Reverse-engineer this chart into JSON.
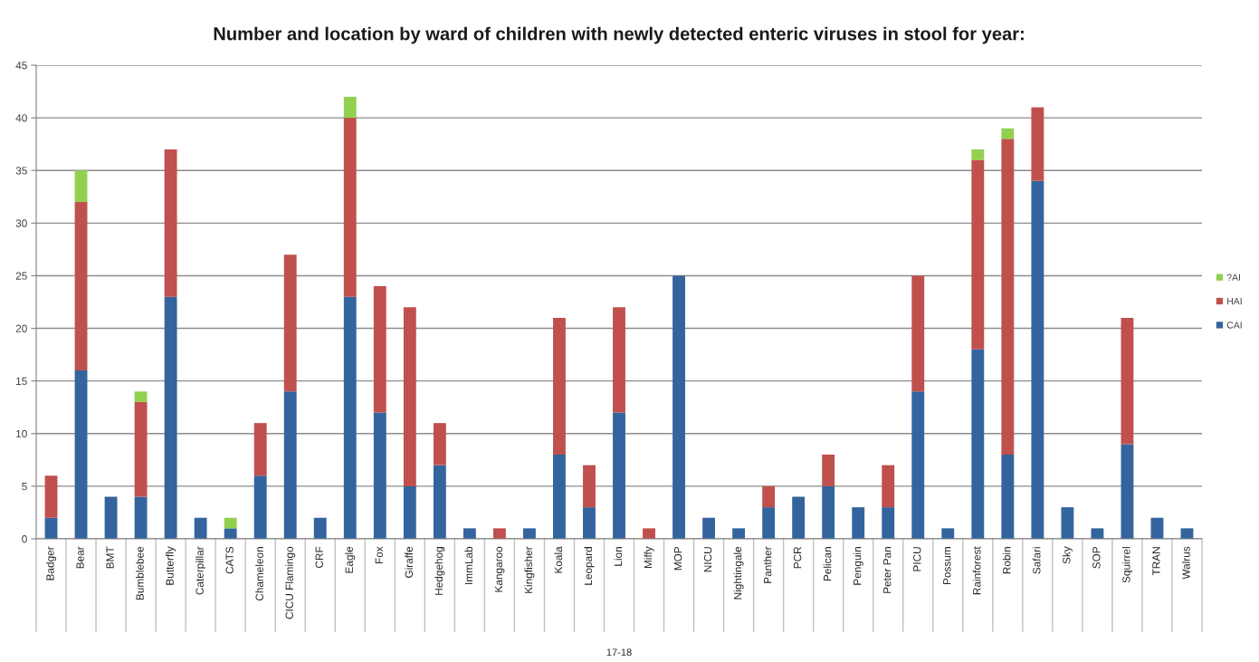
{
  "chart_data": {
    "type": "bar",
    "stacked": true,
    "title": "Number and location by ward of children with newly detected enteric viruses in stool for year:",
    "xlabel": "17-18",
    "categories": [
      "Badger",
      "Bear",
      "BMT",
      "Bumblebee",
      "Butterfly",
      "Caterpillar",
      "CATS",
      "Chameleon",
      "CICU Flamingo",
      "CRF",
      "Eagle",
      "Fox",
      "Giraffe",
      "Hedgehog",
      "ImmLab",
      "Kangaroo",
      "Kingfisher",
      "Koala",
      "Leopard",
      "Lion",
      "Miffy",
      "MOP",
      "NICU",
      "Nightingale",
      "Panther",
      "PCR",
      "Pelican",
      "Penguin",
      "Peter Pan",
      "PICU",
      "Possum",
      "Rainforest",
      "Robin",
      "Safari",
      "Sky",
      "SOP",
      "Squirrel",
      "TRAN",
      "Walrus"
    ],
    "series": [
      {
        "name": "CAI",
        "color": "#33649e",
        "values": [
          2,
          16,
          4,
          4,
          23,
          2,
          1,
          6,
          14,
          2,
          23,
          12,
          5,
          7,
          1,
          null,
          1,
          8,
          3,
          12,
          null,
          25,
          2,
          1,
          3,
          4,
          5,
          3,
          3,
          14,
          1,
          18,
          8,
          34,
          3,
          1,
          9,
          2,
          1
        ]
      },
      {
        "name": "HAI",
        "color": "#c0504d",
        "values": [
          4,
          16,
          null,
          9,
          14,
          null,
          null,
          5,
          13,
          null,
          17,
          12,
          17,
          4,
          null,
          1,
          null,
          13,
          4,
          10,
          1,
          null,
          null,
          null,
          2,
          null,
          3,
          null,
          4,
          11,
          null,
          18,
          30,
          7,
          null,
          null,
          12,
          null,
          null
        ]
      },
      {
        "name": "?AI",
        "color": "#92d050",
        "values": [
          null,
          3,
          null,
          1,
          null,
          null,
          1,
          null,
          null,
          null,
          2,
          null,
          null,
          null,
          null,
          null,
          null,
          null,
          null,
          null,
          null,
          null,
          null,
          null,
          null,
          null,
          null,
          null,
          null,
          null,
          null,
          1,
          1,
          null,
          null,
          null,
          null,
          null,
          null
        ]
      }
    ],
    "ylim": [
      0,
      45
    ],
    "yticks": [
      0,
      5,
      10,
      15,
      20,
      25,
      30,
      35,
      40,
      45
    ],
    "grid": "y",
    "legend": "right"
  }
}
